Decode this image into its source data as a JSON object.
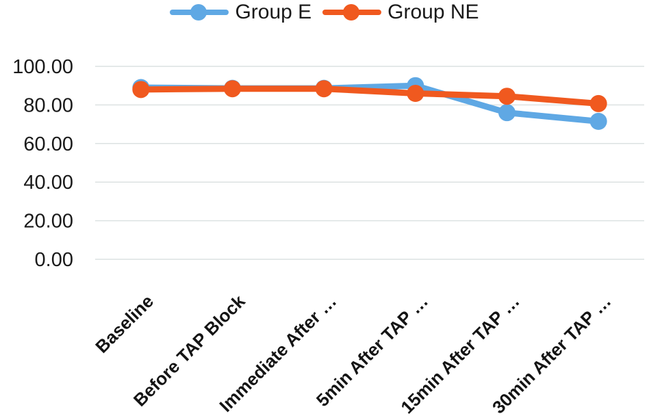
{
  "chart_data": {
    "type": "line",
    "title": "",
    "xlabel": "",
    "ylabel": "",
    "grid": true,
    "legend_position": "top",
    "categories": [
      "Baseline",
      "Before TAP Block",
      "Immediate After …",
      "5min After TAP …",
      "15min After TAP …",
      "30min After TAP …"
    ],
    "series": [
      {
        "name": "Group E",
        "color": "#5FA8E4",
        "values": [
          89.0,
          88.6,
          88.6,
          90.0,
          76.0,
          71.5
        ]
      },
      {
        "name": "Group NE",
        "color": "#F0591F",
        "values": [
          88.0,
          88.4,
          88.4,
          86.0,
          84.5,
          80.7
        ]
      }
    ],
    "y_axis": {
      "min": 0,
      "max": 100,
      "ticks": [
        {
          "value": 100,
          "label": "100.00"
        },
        {
          "value": 80,
          "label": "80.00"
        },
        {
          "value": 60,
          "label": "60.00"
        },
        {
          "value": 40,
          "label": "40.00"
        },
        {
          "value": 20,
          "label": "20.00"
        },
        {
          "value": 0,
          "label": "0.00"
        }
      ]
    }
  },
  "colors": {
    "background": "#FFFFFF",
    "gridline": "#DCE2E2",
    "text": "#1A1A1A"
  }
}
